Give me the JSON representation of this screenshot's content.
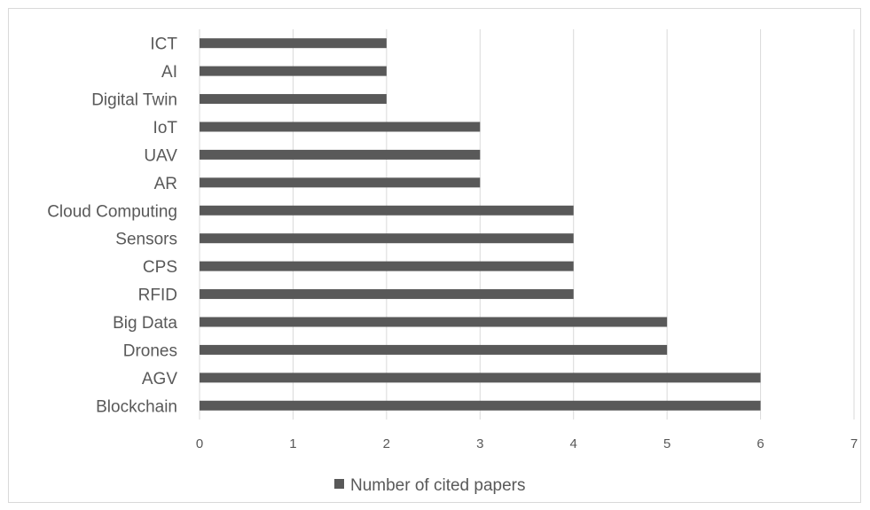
{
  "chart_data": {
    "type": "bar",
    "orientation": "horizontal",
    "categories": [
      "Blockchain",
      "AGV",
      "Drones",
      "Big Data",
      "RFID",
      "CPS",
      "Sensors",
      "Cloud Computing",
      "AR",
      "UAV",
      "IoT",
      "Digital Twin",
      "AI",
      "ICT"
    ],
    "series": [
      {
        "name": "Number of cited papers",
        "values": [
          6,
          6,
          5,
          5,
          4,
          4,
          4,
          4,
          3,
          3,
          3,
          2,
          2,
          2
        ],
        "color": "#595959"
      }
    ],
    "xlim": [
      0,
      7
    ],
    "xticks": [
      0,
      1,
      2,
      3,
      4,
      5,
      6,
      7
    ],
    "grid": "vertical",
    "legend_position": "bottom",
    "title": "",
    "xlabel": "",
    "ylabel": ""
  }
}
